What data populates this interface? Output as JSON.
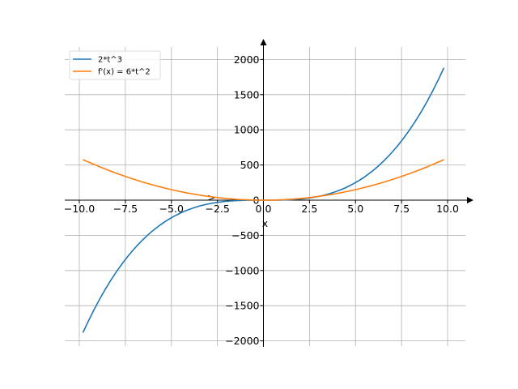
{
  "chart_data": {
    "type": "line",
    "title": "",
    "xlabel": "x",
    "ylabel": ">",
    "xlim": [
      -10.9,
      11.3
    ],
    "ylim": [
      -2100,
      2230
    ],
    "grid": true,
    "legend_position": "top-left",
    "x_ticks": [
      -10,
      -7.5,
      -5,
      -2.5,
      0,
      2.5,
      5,
      7.5,
      10
    ],
    "x_tick_labels": [
      "−10.0",
      "−7.5",
      "−5.0",
      "−2.5",
      "0.0",
      "2.5",
      "5.0",
      "7.5",
      "10.0"
    ],
    "y_ticks": [
      -2000,
      -1500,
      -1000,
      -500,
      0,
      500,
      1000,
      1500,
      2000
    ],
    "y_tick_labels": [
      "−2000",
      "−1500",
      "−1000",
      "−500",
      "0",
      "500",
      "1000",
      "1500",
      "2000"
    ],
    "x_range": [
      -9.8,
      9.8
    ],
    "series": [
      {
        "name": "2*t^3",
        "color": "#1f77b4",
        "expr": "2*x^3"
      },
      {
        "name": "f'(x) = 6*t^2",
        "color": "#ff7f0e",
        "expr": "6*x^2"
      }
    ]
  }
}
